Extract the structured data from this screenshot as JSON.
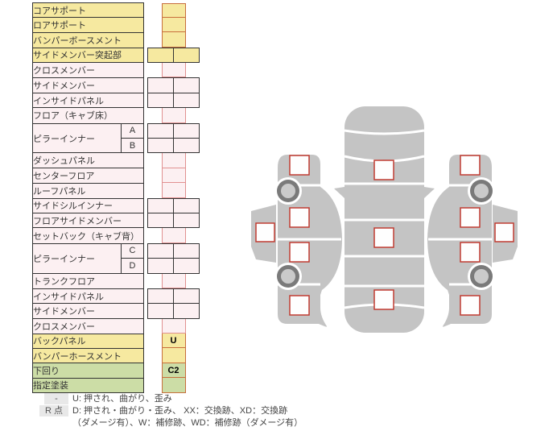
{
  "table": {
    "rows": [
      {
        "label": "コアサポート",
        "color": "yellow",
        "cells": 1,
        "values": [
          ""
        ]
      },
      {
        "label": "ロアサポート",
        "color": "yellow",
        "cells": 1,
        "values": [
          ""
        ]
      },
      {
        "label": "バンパーボースメント",
        "color": "yellow",
        "cells": 1,
        "values": [
          ""
        ]
      },
      {
        "label": "サイドメンバー突起部",
        "color": "yellow",
        "cells": 2,
        "values": [
          "",
          ""
        ]
      },
      {
        "label": "クロスメンバー",
        "color": "pink",
        "cells": 1,
        "values": [
          ""
        ]
      },
      {
        "label": "サイドメンバー",
        "color": "pink",
        "cells": 2,
        "values": [
          "",
          ""
        ]
      },
      {
        "label": "インサイドパネル",
        "color": "pink",
        "cells": 2,
        "values": [
          "",
          ""
        ]
      },
      {
        "label": "フロア（キャブ床）",
        "color": "pink",
        "cells": 1,
        "values": [
          ""
        ]
      },
      {
        "label": "ピラーインナー",
        "color": "pink",
        "group": [
          {
            "sub": "A",
            "cells": 2,
            "values": [
              "",
              ""
            ]
          },
          {
            "sub": "B",
            "cells": 2,
            "values": [
              "",
              ""
            ]
          }
        ]
      },
      {
        "label": "ダッシュパネル",
        "color": "pink",
        "cells": 1,
        "values": [
          ""
        ]
      },
      {
        "label": "センターフロア",
        "color": "pink",
        "cells": 1,
        "values": [
          ""
        ]
      },
      {
        "label": "ルーフパネル",
        "color": "pink",
        "cells": 1,
        "values": [
          ""
        ]
      },
      {
        "label": "サイドシルインナー",
        "color": "pink",
        "cells": 2,
        "values": [
          "",
          ""
        ]
      },
      {
        "label": "フロアサイドメンバー",
        "color": "pink",
        "cells": 2,
        "values": [
          "",
          ""
        ]
      },
      {
        "label": "セットバック（キャブ背）",
        "color": "pink",
        "cells": 1,
        "values": [
          ""
        ]
      },
      {
        "label": "ピラーインナー",
        "color": "pink",
        "group": [
          {
            "sub": "C",
            "cells": 2,
            "values": [
              "",
              ""
            ]
          },
          {
            "sub": "D",
            "cells": 2,
            "values": [
              "",
              ""
            ]
          }
        ]
      },
      {
        "label": "トランクフロア",
        "color": "pink",
        "cells": 1,
        "values": [
          ""
        ]
      },
      {
        "label": "インサイドパネル",
        "color": "pink",
        "cells": 2,
        "values": [
          "",
          ""
        ]
      },
      {
        "label": "サイドメンバー",
        "color": "pink",
        "cells": 2,
        "values": [
          "",
          ""
        ]
      },
      {
        "label": "クロスメンバー",
        "color": "pink",
        "cells": 1,
        "values": [
          ""
        ]
      },
      {
        "label": "バックパネル",
        "color": "yellow",
        "cells": 1,
        "values": [
          "U"
        ]
      },
      {
        "label": "バンパーホースメント",
        "color": "yellow",
        "cells": 1,
        "values": [
          ""
        ]
      },
      {
        "label": "下回り",
        "color": "green",
        "cells": 1,
        "values": [
          "C2"
        ]
      },
      {
        "label": "指定塗装",
        "color": "green",
        "cells": 1,
        "values": [
          ""
        ]
      }
    ]
  },
  "legend": {
    "badge1": "-",
    "badge2": "R 点",
    "line1": "U: 押され、曲がり、歪み",
    "line2": "D: 押され・曲がり・歪み、 XX：交換跡、XD：交換跡",
    "line3": "（ダメージ有）、W：補修跡、WD：補修跡（ダメージ有）"
  },
  "diagram": {
    "body_color": "#c4c4c4",
    "checkbox_border_color": "#c03c32",
    "checkpoints": [
      "top-front",
      "top-center",
      "top-rear",
      "left-front-fender",
      "left-front-door",
      "left-rear-door",
      "left-rear-fender",
      "left-sill",
      "right-front-fender",
      "right-front-door",
      "right-rear-door",
      "right-rear-fender",
      "right-sill"
    ]
  },
  "colors": {
    "yellow_fill": "#f6e9a0",
    "pink_fill": "#fcf0f2",
    "green_fill": "#ccdda6",
    "yellow_border": "#c86e3c",
    "pink_border": "#e19191",
    "badge_bg": "#e8e8e8"
  }
}
